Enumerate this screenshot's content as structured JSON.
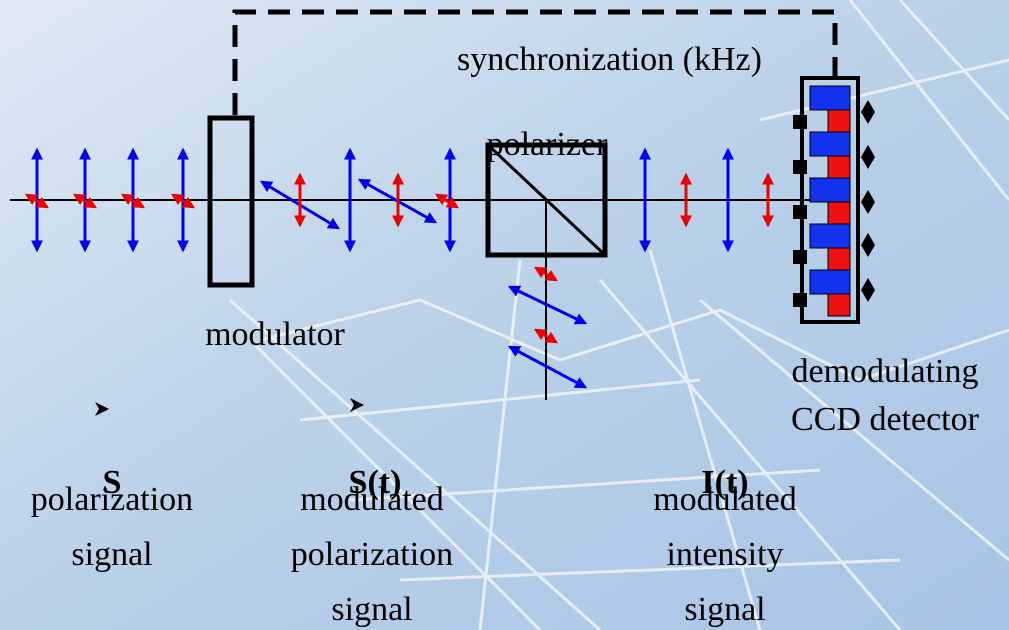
{
  "labels": {
    "sync": "synchronization (kHz)",
    "polarizer": "polarizer",
    "modulator": "modulator",
    "detector": [
      "demodulating",
      "CCD detector"
    ]
  },
  "signals": [
    {
      "symbol": "S",
      "lines": [
        "polarization",
        "signal"
      ]
    },
    {
      "symbol": "S(t)",
      "lines": [
        "modulated",
        "polarization",
        "signal"
      ]
    },
    {
      "symbol": "I(t)",
      "lines": [
        "modulated",
        "intensity",
        "signal"
      ]
    }
  ]
}
